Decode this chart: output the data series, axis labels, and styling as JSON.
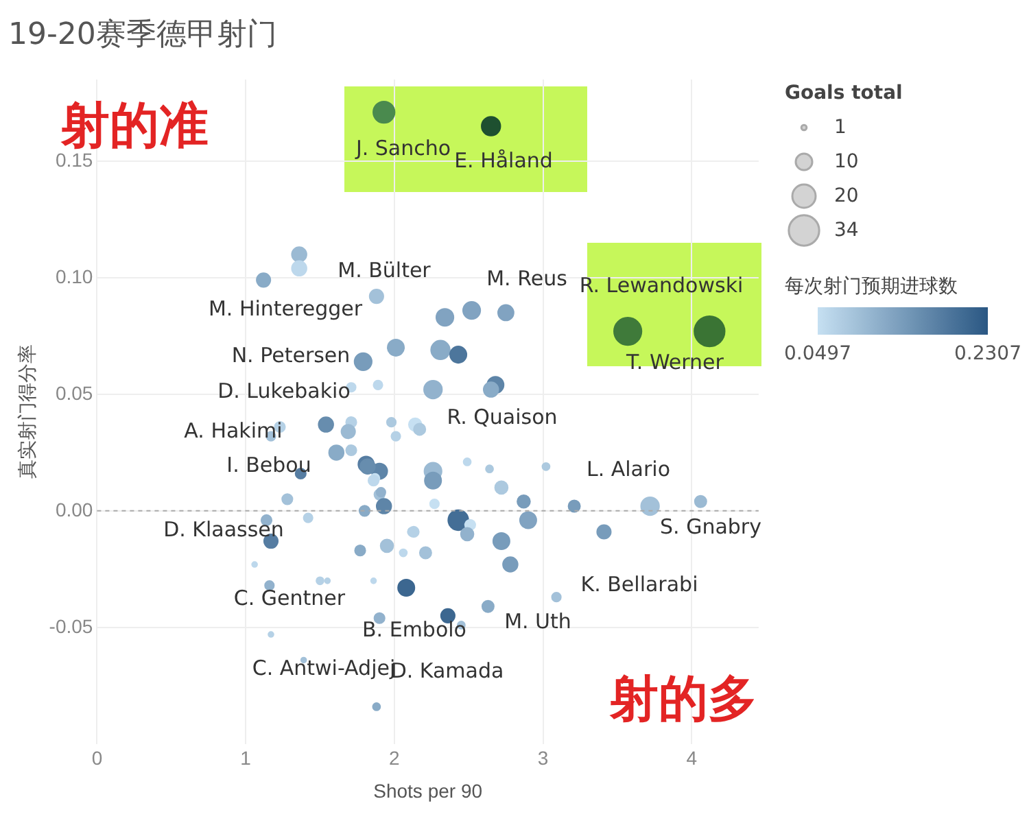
{
  "chart_data": {
    "type": "bubble",
    "title": "19-20赛季德甲射门",
    "xlabel": "Shots per 90",
    "ylabel": "真实射门得分率",
    "legend_title": "Goals total",
    "clabel": "每次射门预期进球数",
    "clim": [
      0.0497,
      0.2307
    ],
    "cticks": [
      0.0497,
      0.2307
    ],
    "size_legend": [
      1,
      10,
      20,
      34
    ],
    "xlim": [
      0,
      4.45
    ],
    "ylim": [
      -0.1,
      0.185
    ],
    "xticks": [
      0,
      1,
      2,
      3,
      4
    ],
    "yticks": [
      {
        "value": -0.05,
        "label": "-0.05"
      },
      {
        "value": 0,
        "label": "0.00"
      },
      {
        "value": 0.05,
        "label": "0.05"
      },
      {
        "value": 0.1,
        "label": "0.10"
      },
      {
        "value": 0.15,
        "label": "0.15"
      }
    ],
    "grid": true,
    "ref_lines": [
      {
        "axis": "y",
        "value": 0,
        "line_style": "dashed",
        "color": "#aaaaaa"
      }
    ],
    "series": [
      {
        "x": [
          1.36,
          1.36,
          1.12,
          1.88,
          2.01,
          1.79,
          1.71,
          1.89,
          1.54,
          1.71,
          1.69,
          1.98,
          2.01,
          2.14,
          1.23,
          1.17,
          1.61,
          1.71,
          1.81,
          1.9,
          1.87,
          1.37,
          1.28,
          1.9,
          1.93,
          1.14,
          1.42,
          1.8,
          1.17,
          1.77,
          1.95,
          2.06,
          2.13,
          1.06,
          1.16,
          1.5,
          1.55,
          1.86,
          2.08,
          1.9,
          1.17,
          1.39,
          1.88,
          2.34,
          2.52,
          2.75,
          2.31,
          2.43,
          2.68,
          2.65,
          2.26,
          2.17,
          1.82,
          2.26,
          2.26,
          2.49,
          2.64,
          2.72,
          3.02,
          2.87,
          3.21,
          3.72,
          4.06,
          2.27,
          1.86,
          1.91,
          2.43,
          2.51,
          2.49,
          2.9,
          2.72,
          2.78,
          3.41,
          2.12,
          2.21,
          2.36,
          2.45,
          2.63,
          3.09
        ],
        "values": [
          0.11,
          0.104,
          0.099,
          0.092,
          0.07,
          0.064,
          0.053,
          0.054,
          0.037,
          0.038,
          0.034,
          0.038,
          0.032,
          0.037,
          0.036,
          0.032,
          0.025,
          0.026,
          0.02,
          0.017,
          0.014,
          0.016,
          0.005,
          0.007,
          0.002,
          -0.004,
          -0.003,
          0.0,
          -0.013,
          -0.017,
          -0.015,
          -0.018,
          -0.009,
          -0.023,
          -0.032,
          -0.03,
          -0.03,
          -0.03,
          -0.033,
          -0.046,
          -0.053,
          -0.064,
          -0.084,
          0.083,
          0.086,
          0.085,
          0.069,
          0.067,
          0.054,
          0.052,
          0.052,
          0.035,
          0.019,
          0.017,
          0.013,
          0.021,
          0.018,
          0.01,
          0.019,
          0.004,
          0.002,
          0.002,
          0.004,
          0.003,
          0.013,
          0.008,
          -0.004,
          -0.006,
          -0.01,
          -0.004,
          -0.013,
          -0.023,
          -0.009,
          -0.009,
          -0.018,
          -0.045,
          -0.049,
          -0.041,
          -0.037
        ],
        "sizes": [
          8,
          8,
          7,
          7,
          10,
          11,
          3,
          3,
          8,
          4,
          7,
          3,
          3,
          6,
          4,
          3,
          8,
          4,
          9,
          9,
          3,
          4,
          4,
          4,
          8,
          4,
          3,
          4,
          7,
          4,
          6,
          2,
          4,
          1,
          3,
          2,
          1,
          1,
          10,
          4,
          1,
          1,
          2,
          11,
          11,
          9,
          13,
          10,
          10,
          8,
          12,
          5,
          8,
          11,
          10,
          2,
          2,
          6,
          2,
          6,
          5,
          12,
          5,
          3,
          4,
          3,
          15,
          4,
          6,
          10,
          10,
          8,
          7,
          3,
          5,
          7,
          2,
          5,
          3
        ],
        "colors": [
          "#9bbad3",
          "#bdd8ec",
          "#89abc7",
          "#a3c1d9",
          "#89abc7",
          "#789cbb",
          "#bdd8ec",
          "#bdd8ec",
          "#678dae",
          "#b5d1e6",
          "#9bbad3",
          "#acc9df",
          "#b5d1e6",
          "#c6e0f2",
          "#b5d1e6",
          "#a3c1d9",
          "#89abc7",
          "#acc9df",
          "#567da2",
          "#5e85a8",
          "#c6e0f2",
          "#567da2",
          "#a3c1d9",
          "#a3c1d9",
          "#5e85a8",
          "#92b2cd",
          "#b5d1e6",
          "#89abc7",
          "#567da2",
          "#89abc7",
          "#a3c1d9",
          "#bdd8ec",
          "#b5d1e6",
          "#bdd8ec",
          "#92b2cd",
          "#b5d1e6",
          "#b5d1e6",
          "#bdd8ec",
          "#3c6790",
          "#92b2cd",
          "#b5d1e6",
          "#a3c1d9",
          "#89abc7",
          "#81a3c1",
          "#81a3c1",
          "#81a3c1",
          "#89abc7",
          "#4d769c",
          "#5e85a8",
          "#89abc7",
          "#92b2cd",
          "#acc9df",
          "#678dae",
          "#9bbad3",
          "#789cbb",
          "#bdd8ec",
          "#acc9df",
          "#acc9df",
          "#acc9df",
          "#789cbb",
          "#789cbb",
          "#a3c1d9",
          "#9bbad3",
          "#c6e0f2",
          "#bdd8ec",
          "#92b2cd",
          "#446e96",
          "#c6e0f2",
          "#92b2cd",
          "#81a3c1",
          "#789cbb",
          "#789cbb",
          "#789cbb",
          "#b5d1e6",
          "#a3c1d9",
          "#3c6790",
          "#a3c1d9",
          "#89abc7",
          "#a3c1d9"
        ],
        "cvalues": [
          0.1,
          0.06,
          0.12,
          0.09,
          0.12,
          0.14,
          0.06,
          0.06,
          0.16,
          0.07,
          0.1,
          0.08,
          0.07,
          0.05,
          0.07,
          0.09,
          0.12,
          0.08,
          0.18,
          0.17,
          0.05,
          0.18,
          0.09,
          0.09,
          0.17,
          0.11,
          0.07,
          0.12,
          0.18,
          0.12,
          0.09,
          0.06,
          0.07,
          0.06,
          0.11,
          0.07,
          0.07,
          0.06,
          0.21,
          0.11,
          0.07,
          0.09,
          0.12,
          0.13,
          0.13,
          0.13,
          0.12,
          0.19,
          0.17,
          0.12,
          0.11,
          0.08,
          0.16,
          0.1,
          0.14,
          0.06,
          0.08,
          0.08,
          0.08,
          0.14,
          0.14,
          0.09,
          0.1,
          0.05,
          0.06,
          0.11,
          0.2,
          0.05,
          0.11,
          0.13,
          0.14,
          0.14,
          0.14,
          0.07,
          0.09,
          0.21,
          0.09,
          0.12,
          0.09
        ]
      },
      {
        "x": [
          3.57,
          4.12,
          1.93,
          2.65
        ],
        "values": [
          0.077,
          0.077,
          0.171,
          0.165
        ],
        "sizes": [
          28,
          34,
          17,
          13
        ],
        "colors": [
          "#3f7a3a",
          "#3a7434",
          "#4a8a4e",
          "#1e5030"
        ]
      }
    ],
    "annotations": [
      "J. Sancho",
      "E. Håland",
      "M. Bülter",
      "M. Hinteregger",
      "M. Reus",
      "R. Lewandowski",
      "T. Werner",
      "N. Petersen",
      "D. Lukebakio",
      "R. Quaison",
      "A. Hakimi",
      "I. Bebou",
      "L. Alario",
      "D. Klaassen",
      "S. Gnabry",
      "K. Bellarabi",
      "C. Gentner",
      "B. Embolo",
      "M. Uth",
      "C. Antwi-Adjej",
      "D. Kamada",
      "射的准",
      "射的多"
    ]
  }
}
